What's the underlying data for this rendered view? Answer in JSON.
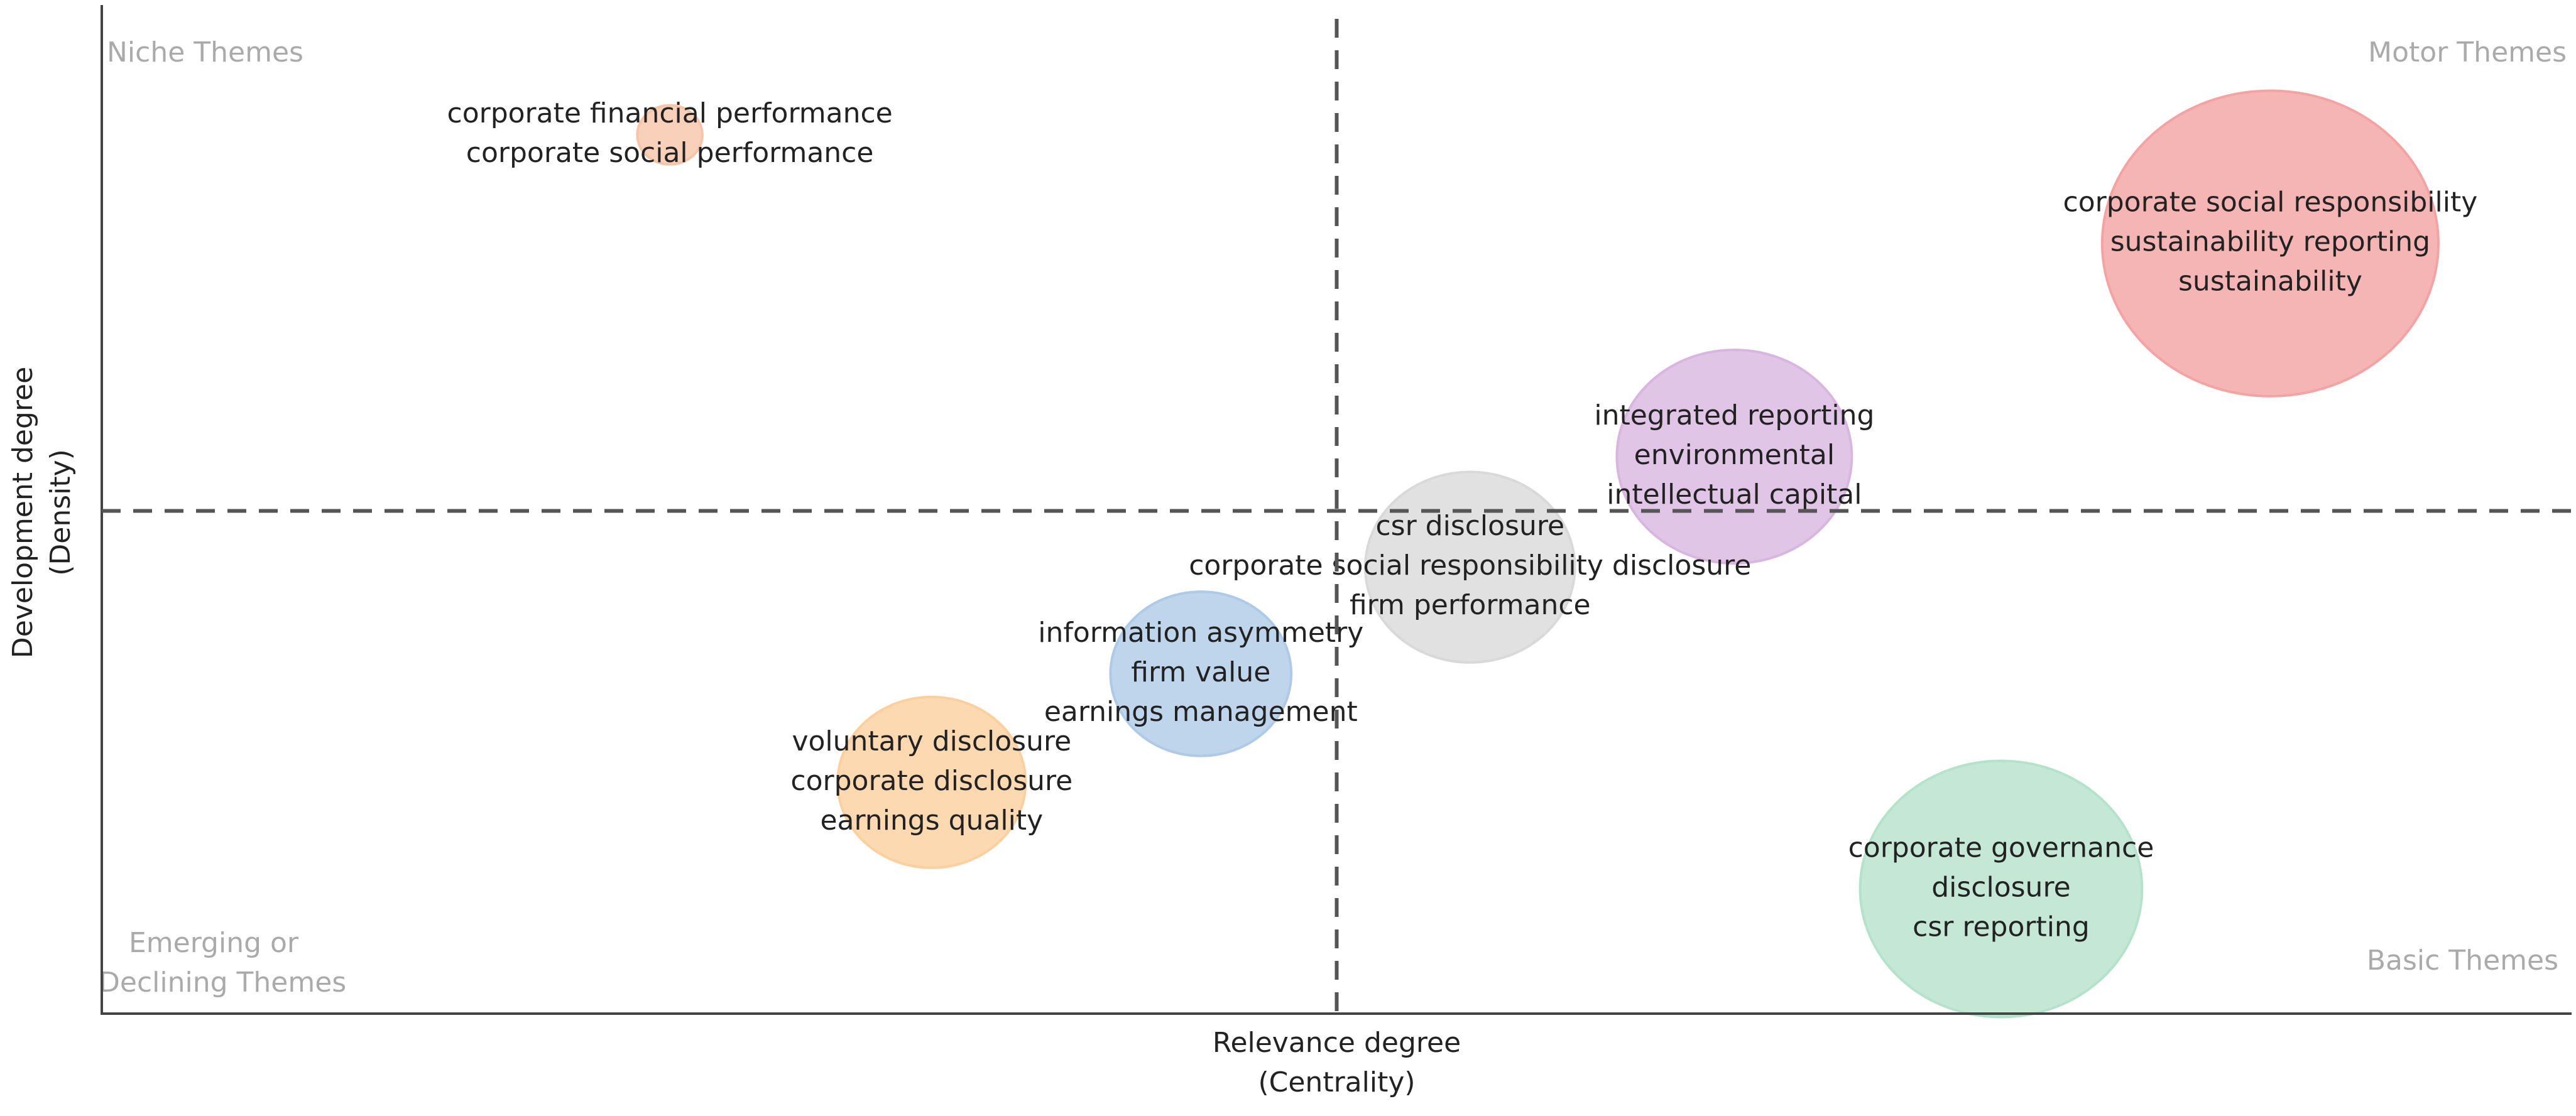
{
  "chart_data": {
    "type": "bubble",
    "xlabel": [
      "Relevance degree",
      "(Centrality)"
    ],
    "ylabel": [
      "Development degree",
      "(Density)"
    ],
    "quadrants": {
      "top_left": [
        "Niche Themes"
      ],
      "top_right": [
        "Motor Themes"
      ],
      "bottom_left": [
        "Emerging or",
        "Declining Themes"
      ],
      "bottom_right": [
        "Basic Themes"
      ]
    },
    "xlim": [
      0,
      100
    ],
    "ylim": [
      0,
      100
    ],
    "xline": 50,
    "yline": 50,
    "clusters": [
      {
        "labels": [
          "corporate financial performance",
          "corporate social performance"
        ],
        "x": 23.0,
        "y": 87.4,
        "size": 18,
        "color": "#f7c4a8"
      },
      {
        "labels": [
          "corporate social responsibility",
          "sustainability reporting",
          "sustainability"
        ],
        "x": 87.8,
        "y": 76.6,
        "size": 93,
        "color": "#f4a3a3"
      },
      {
        "labels": [
          "integrated reporting",
          "environmental",
          "intellectual capital"
        ],
        "x": 66.1,
        "y": 55.4,
        "size": 65,
        "color": "#d8b6e0"
      },
      {
        "labels": [
          "csr disclosure",
          "corporate social responsibility disclosure",
          "firm performance"
        ],
        "x": 55.4,
        "y": 44.4,
        "size": 58,
        "color": "#d9d9d9"
      },
      {
        "labels": [
          "information asymmetry",
          "firm value",
          "earnings management"
        ],
        "x": 44.5,
        "y": 33.8,
        "size": 50,
        "color": "#aecae6"
      },
      {
        "labels": [
          "voluntary disclosure",
          "corporate disclosure",
          "earnings quality"
        ],
        "x": 33.6,
        "y": 23.0,
        "size": 52,
        "color": "#fccf9e"
      },
      {
        "labels": [
          "corporate governance",
          "disclosure",
          "csr reporting"
        ],
        "x": 76.9,
        "y": 12.4,
        "size": 78,
        "color": "#b5e2ca"
      }
    ]
  }
}
